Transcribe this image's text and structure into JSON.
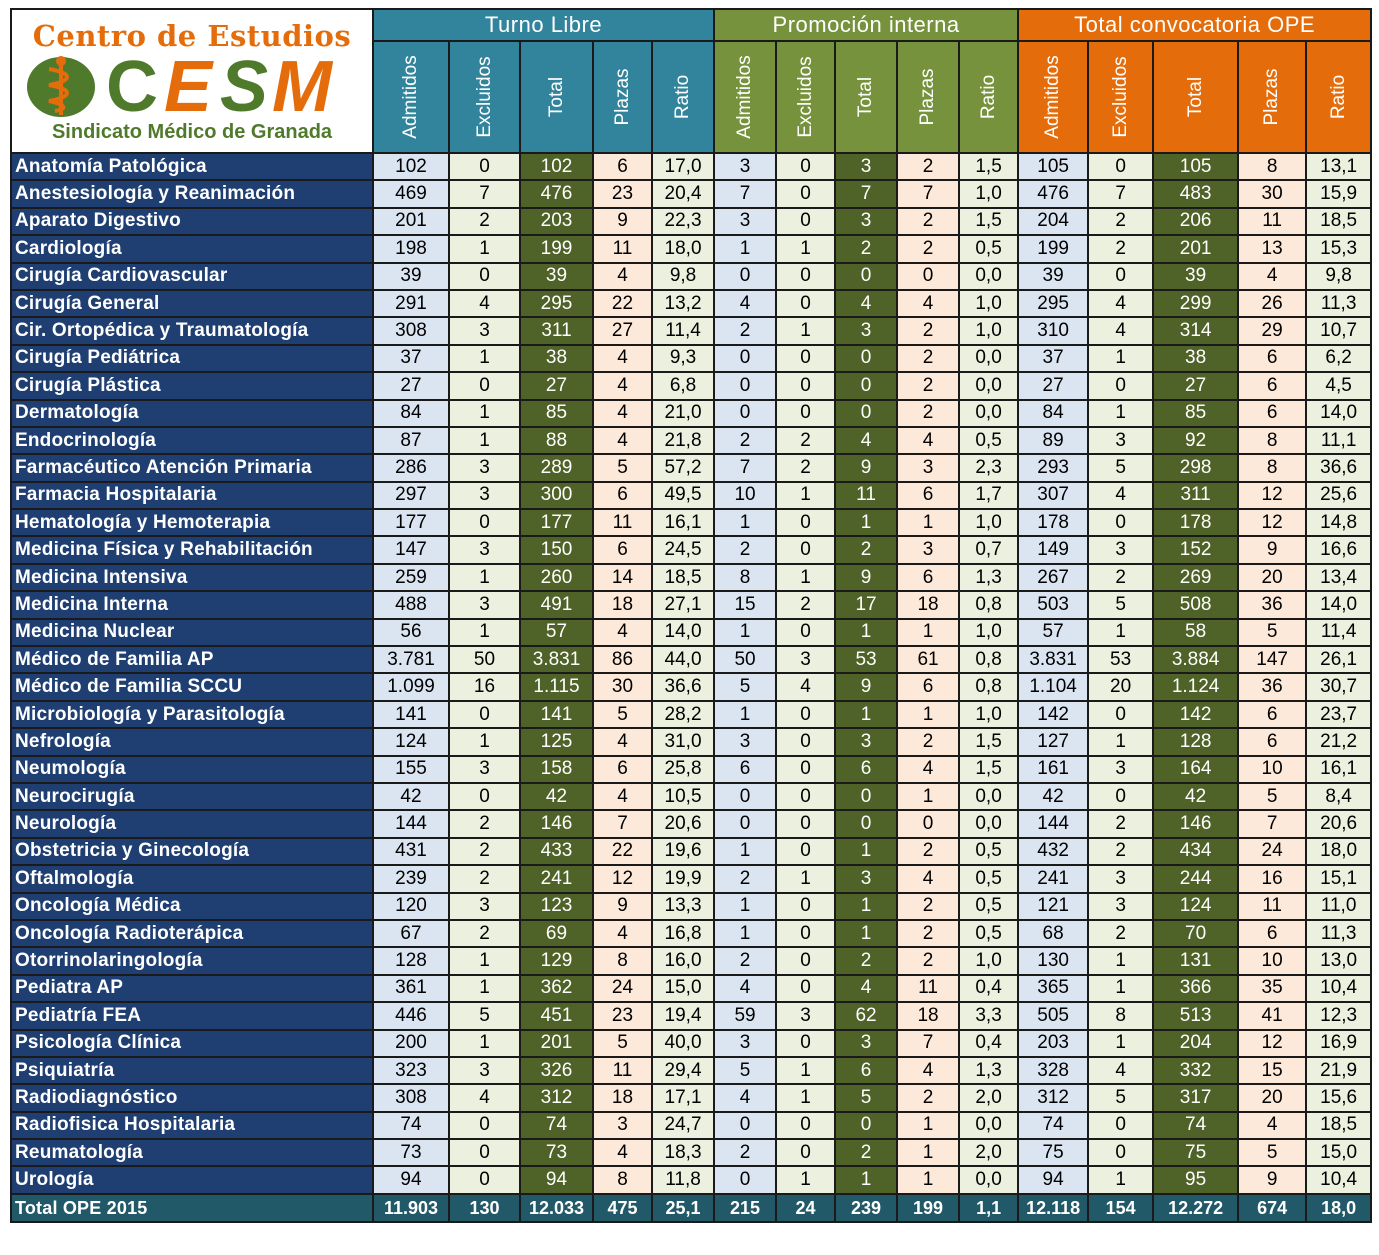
{
  "logo": {
    "top_text": "Centro de Estudios",
    "letters": [
      "C",
      "E",
      "S",
      "M"
    ],
    "bottom_text": "Sindicato Médico de Granada",
    "colors": {
      "orange": "#e46c0a",
      "green": "#4f7a2c"
    }
  },
  "groups": [
    {
      "label": "Turno Libre",
      "color": "#31849b"
    },
    {
      "label": "Promoción interna",
      "color": "#76923c"
    },
    {
      "label": "Total convocatoria OPE",
      "color": "#e46c0a"
    }
  ],
  "subheaders": [
    [
      "Admitidos",
      "Excluidos",
      "Total",
      "Plazas",
      "Ratio"
    ],
    [
      "Admitidos",
      "Excluidos",
      "Total",
      "Plazas",
      "Ratio"
    ],
    [
      "Admitidos",
      "Excluidos",
      "Total",
      "Plazas",
      "Ratio"
    ]
  ],
  "rows": [
    {
      "name": "Anatomía Patológica",
      "values": [
        "102",
        "0",
        "102",
        "6",
        "17,0",
        "3",
        "0",
        "3",
        "2",
        "1,5",
        "105",
        "0",
        "105",
        "8",
        "13,1"
      ]
    },
    {
      "name": "Anestesiología y Reanimación",
      "values": [
        "469",
        "7",
        "476",
        "23",
        "20,4",
        "7",
        "0",
        "7",
        "7",
        "1,0",
        "476",
        "7",
        "483",
        "30",
        "15,9"
      ]
    },
    {
      "name": "Aparato Digestivo",
      "values": [
        "201",
        "2",
        "203",
        "9",
        "22,3",
        "3",
        "0",
        "3",
        "2",
        "1,5",
        "204",
        "2",
        "206",
        "11",
        "18,5"
      ]
    },
    {
      "name": "Cardiología",
      "values": [
        "198",
        "1",
        "199",
        "11",
        "18,0",
        "1",
        "1",
        "2",
        "2",
        "0,5",
        "199",
        "2",
        "201",
        "13",
        "15,3"
      ]
    },
    {
      "name": "Cirugía Cardiovascular",
      "values": [
        "39",
        "0",
        "39",
        "4",
        "9,8",
        "0",
        "0",
        "0",
        "0",
        "0,0",
        "39",
        "0",
        "39",
        "4",
        "9,8"
      ]
    },
    {
      "name": "Cirugía General",
      "values": [
        "291",
        "4",
        "295",
        "22",
        "13,2",
        "4",
        "0",
        "4",
        "4",
        "1,0",
        "295",
        "4",
        "299",
        "26",
        "11,3"
      ]
    },
    {
      "name": "Cir. Ortopédica y Traumatología",
      "values": [
        "308",
        "3",
        "311",
        "27",
        "11,4",
        "2",
        "1",
        "3",
        "2",
        "1,0",
        "310",
        "4",
        "314",
        "29",
        "10,7"
      ]
    },
    {
      "name": "Cirugía Pediátrica",
      "values": [
        "37",
        "1",
        "38",
        "4",
        "9,3",
        "0",
        "0",
        "0",
        "2",
        "0,0",
        "37",
        "1",
        "38",
        "6",
        "6,2"
      ]
    },
    {
      "name": "Cirugía Plástica",
      "values": [
        "27",
        "0",
        "27",
        "4",
        "6,8",
        "0",
        "0",
        "0",
        "2",
        "0,0",
        "27",
        "0",
        "27",
        "6",
        "4,5"
      ]
    },
    {
      "name": "Dermatología",
      "values": [
        "84",
        "1",
        "85",
        "4",
        "21,0",
        "0",
        "0",
        "0",
        "2",
        "0,0",
        "84",
        "1",
        "85",
        "6",
        "14,0"
      ]
    },
    {
      "name": "Endocrinología",
      "values": [
        "87",
        "1",
        "88",
        "4",
        "21,8",
        "2",
        "2",
        "4",
        "4",
        "0,5",
        "89",
        "3",
        "92",
        "8",
        "11,1"
      ]
    },
    {
      "name": "Farmacéutico Atención Primaria",
      "values": [
        "286",
        "3",
        "289",
        "5",
        "57,2",
        "7",
        "2",
        "9",
        "3",
        "2,3",
        "293",
        "5",
        "298",
        "8",
        "36,6"
      ]
    },
    {
      "name": "Farmacia Hospitalaria",
      "values": [
        "297",
        "3",
        "300",
        "6",
        "49,5",
        "10",
        "1",
        "11",
        "6",
        "1,7",
        "307",
        "4",
        "311",
        "12",
        "25,6"
      ]
    },
    {
      "name": "Hematología y Hemoterapia",
      "values": [
        "177",
        "0",
        "177",
        "11",
        "16,1",
        "1",
        "0",
        "1",
        "1",
        "1,0",
        "178",
        "0",
        "178",
        "12",
        "14,8"
      ]
    },
    {
      "name": "Medicina Física y Rehabilitación",
      "values": [
        "147",
        "3",
        "150",
        "6",
        "24,5",
        "2",
        "0",
        "2",
        "3",
        "0,7",
        "149",
        "3",
        "152",
        "9",
        "16,6"
      ]
    },
    {
      "name": "Medicina Intensiva",
      "values": [
        "259",
        "1",
        "260",
        "14",
        "18,5",
        "8",
        "1",
        "9",
        "6",
        "1,3",
        "267",
        "2",
        "269",
        "20",
        "13,4"
      ]
    },
    {
      "name": "Medicina Interna",
      "values": [
        "488",
        "3",
        "491",
        "18",
        "27,1",
        "15",
        "2",
        "17",
        "18",
        "0,8",
        "503",
        "5",
        "508",
        "36",
        "14,0"
      ]
    },
    {
      "name": "Medicina Nuclear",
      "values": [
        "56",
        "1",
        "57",
        "4",
        "14,0",
        "1",
        "0",
        "1",
        "1",
        "1,0",
        "57",
        "1",
        "58",
        "5",
        "11,4"
      ]
    },
    {
      "name": "Médico de Familia AP",
      "values": [
        "3.781",
        "50",
        "3.831",
        "86",
        "44,0",
        "50",
        "3",
        "53",
        "61",
        "0,8",
        "3.831",
        "53",
        "3.884",
        "147",
        "26,1"
      ]
    },
    {
      "name": "Médico de Familia SCCU",
      "values": [
        "1.099",
        "16",
        "1.115",
        "30",
        "36,6",
        "5",
        "4",
        "9",
        "6",
        "0,8",
        "1.104",
        "20",
        "1.124",
        "36",
        "30,7"
      ]
    },
    {
      "name": "Microbiología y Parasitología",
      "values": [
        "141",
        "0",
        "141",
        "5",
        "28,2",
        "1",
        "0",
        "1",
        "1",
        "1,0",
        "142",
        "0",
        "142",
        "6",
        "23,7"
      ]
    },
    {
      "name": "Nefrología",
      "values": [
        "124",
        "1",
        "125",
        "4",
        "31,0",
        "3",
        "0",
        "3",
        "2",
        "1,5",
        "127",
        "1",
        "128",
        "6",
        "21,2"
      ]
    },
    {
      "name": "Neumología",
      "values": [
        "155",
        "3",
        "158",
        "6",
        "25,8",
        "6",
        "0",
        "6",
        "4",
        "1,5",
        "161",
        "3",
        "164",
        "10",
        "16,1"
      ]
    },
    {
      "name": "Neurocirugía",
      "values": [
        "42",
        "0",
        "42",
        "4",
        "10,5",
        "0",
        "0",
        "0",
        "1",
        "0,0",
        "42",
        "0",
        "42",
        "5",
        "8,4"
      ]
    },
    {
      "name": "Neurología",
      "values": [
        "144",
        "2",
        "146",
        "7",
        "20,6",
        "0",
        "0",
        "0",
        "0",
        "0,0",
        "144",
        "2",
        "146",
        "7",
        "20,6"
      ]
    },
    {
      "name": "Obstetricia y Ginecología",
      "values": [
        "431",
        "2",
        "433",
        "22",
        "19,6",
        "1",
        "0",
        "1",
        "2",
        "0,5",
        "432",
        "2",
        "434",
        "24",
        "18,0"
      ]
    },
    {
      "name": "Oftalmología",
      "values": [
        "239",
        "2",
        "241",
        "12",
        "19,9",
        "2",
        "1",
        "3",
        "4",
        "0,5",
        "241",
        "3",
        "244",
        "16",
        "15,1"
      ]
    },
    {
      "name": "Oncología Médica",
      "values": [
        "120",
        "3",
        "123",
        "9",
        "13,3",
        "1",
        "0",
        "1",
        "2",
        "0,5",
        "121",
        "3",
        "124",
        "11",
        "11,0"
      ]
    },
    {
      "name": "Oncología Radioterápica",
      "values": [
        "67",
        "2",
        "69",
        "4",
        "16,8",
        "1",
        "0",
        "1",
        "2",
        "0,5",
        "68",
        "2",
        "70",
        "6",
        "11,3"
      ]
    },
    {
      "name": "Otorrinolaringología",
      "values": [
        "128",
        "1",
        "129",
        "8",
        "16,0",
        "2",
        "0",
        "2",
        "2",
        "1,0",
        "130",
        "1",
        "131",
        "10",
        "13,0"
      ]
    },
    {
      "name": "Pediatra AP",
      "values": [
        "361",
        "1",
        "362",
        "24",
        "15,0",
        "4",
        "0",
        "4",
        "11",
        "0,4",
        "365",
        "1",
        "366",
        "35",
        "10,4"
      ]
    },
    {
      "name": "Pediatría FEA",
      "values": [
        "446",
        "5",
        "451",
        "23",
        "19,4",
        "59",
        "3",
        "62",
        "18",
        "3,3",
        "505",
        "8",
        "513",
        "41",
        "12,3"
      ]
    },
    {
      "name": "Psicología Clínica",
      "values": [
        "200",
        "1",
        "201",
        "5",
        "40,0",
        "3",
        "0",
        "3",
        "7",
        "0,4",
        "203",
        "1",
        "204",
        "12",
        "16,9"
      ]
    },
    {
      "name": "Psiquiatría",
      "values": [
        "323",
        "3",
        "326",
        "11",
        "29,4",
        "5",
        "1",
        "6",
        "4",
        "1,3",
        "328",
        "4",
        "332",
        "15",
        "21,9"
      ]
    },
    {
      "name": "Radiodiagnóstico",
      "values": [
        "308",
        "4",
        "312",
        "18",
        "17,1",
        "4",
        "1",
        "5",
        "2",
        "2,0",
        "312",
        "5",
        "317",
        "20",
        "15,6"
      ]
    },
    {
      "name": "Radiofisica Hospitalaria",
      "values": [
        "74",
        "0",
        "74",
        "3",
        "24,7",
        "0",
        "0",
        "0",
        "1",
        "0,0",
        "74",
        "0",
        "74",
        "4",
        "18,5"
      ]
    },
    {
      "name": "Reumatología",
      "values": [
        "73",
        "0",
        "73",
        "4",
        "18,3",
        "2",
        "0",
        "2",
        "1",
        "2,0",
        "75",
        "0",
        "75",
        "5",
        "15,0"
      ]
    },
    {
      "name": "Urología",
      "values": [
        "94",
        "0",
        "94",
        "8",
        "11,8",
        "0",
        "1",
        "1",
        "1",
        "0,0",
        "94",
        "1",
        "95",
        "9",
        "10,4"
      ]
    }
  ],
  "total_row": {
    "name": "Total OPE 2015",
    "values": [
      "11.903",
      "130",
      "12.033",
      "475",
      "25,1",
      "215",
      "24",
      "239",
      "199",
      "1,1",
      "12.118",
      "154",
      "12.272",
      "674",
      "18,0"
    ]
  }
}
